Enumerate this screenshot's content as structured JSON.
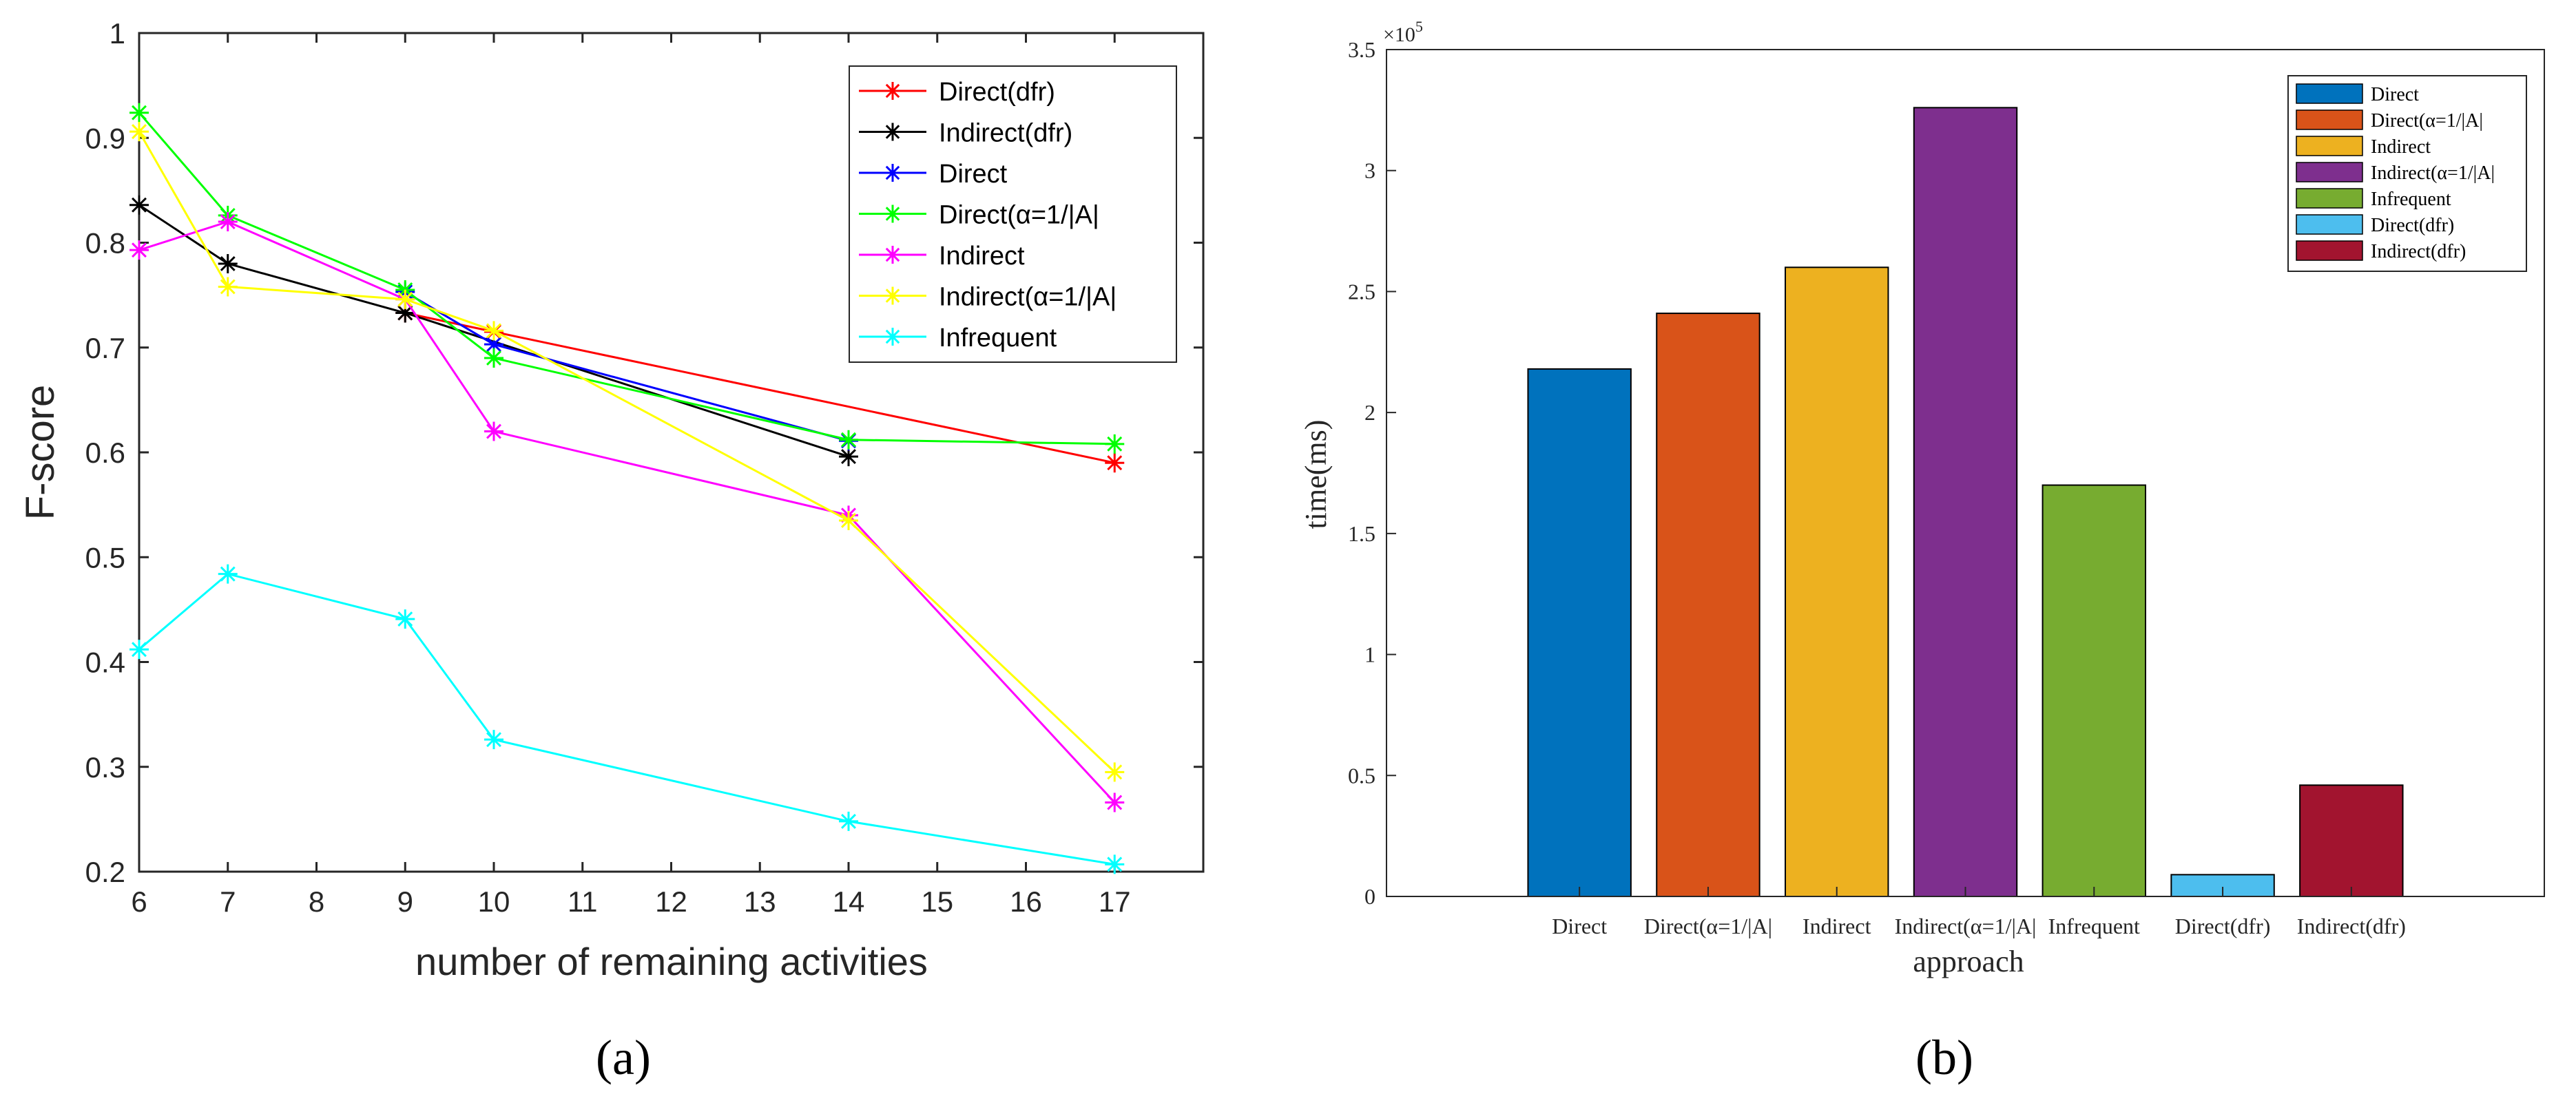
{
  "chart_data": [
    {
      "type": "line",
      "panel_label": "(a)",
      "xlabel": "number of remaining activities",
      "ylabel": "F-score",
      "xlim": [
        6,
        18
      ],
      "ylim": [
        0.2,
        1
      ],
      "xticks": [
        6,
        7,
        8,
        9,
        10,
        11,
        12,
        13,
        14,
        15,
        16,
        17
      ],
      "yticks": [
        0.2,
        0.3,
        0.4,
        0.5,
        0.6,
        0.7,
        0.8,
        0.9,
        1
      ],
      "ytick_labels": [
        "0.2",
        "0.3",
        "0.4",
        "0.5",
        "0.6",
        "0.7",
        "0.8",
        "0.9",
        "1"
      ],
      "legend_position": "top-right",
      "marker": "*",
      "series": [
        {
          "name": "Direct(dfr)",
          "color": "#ff0000",
          "x": [
            9,
            10,
            17
          ],
          "y": [
            0.733,
            0.715,
            0.59
          ]
        },
        {
          "name": "Indirect(dfr)",
          "color": "#000000",
          "x": [
            6,
            7,
            9,
            14
          ],
          "y": [
            0.836,
            0.78,
            0.733,
            0.596
          ]
        },
        {
          "name": "Direct",
          "color": "#0000ff",
          "x": [
            9,
            10,
            14
          ],
          "y": [
            0.753,
            0.703,
            0.611
          ]
        },
        {
          "name": "Direct(α=1/|A|",
          "color": "#00ff00",
          "x": [
            6,
            7,
            9,
            10,
            14,
            17
          ],
          "y": [
            0.924,
            0.826,
            0.755,
            0.69,
            0.612,
            0.608
          ]
        },
        {
          "name": "Indirect",
          "color": "#ff00ff",
          "x": [
            6,
            7,
            9,
            10,
            14,
            17
          ],
          "y": [
            0.793,
            0.82,
            0.746,
            0.62,
            0.54,
            0.266
          ]
        },
        {
          "name": "Indirect(α=1/|A|",
          "color": "#ffff00",
          "x": [
            6,
            7,
            9,
            10,
            14,
            17
          ],
          "y": [
            0.906,
            0.758,
            0.746,
            0.716,
            0.535,
            0.295
          ]
        },
        {
          "name": "Infrequent",
          "color": "#00ffff",
          "x": [
            6,
            7,
            9,
            10,
            14,
            17
          ],
          "y": [
            0.412,
            0.484,
            0.441,
            0.326,
            0.248,
            0.207
          ]
        }
      ]
    },
    {
      "type": "bar",
      "panel_label": "(b)",
      "xlabel": "approach",
      "ylabel": "time(ms)",
      "ylim": [
        0,
        350000
      ],
      "y_exponent": "×10",
      "y_exponent_power": "5",
      "yticks": [
        0,
        50000,
        100000,
        150000,
        200000,
        250000,
        300000,
        350000
      ],
      "ytick_labels": [
        "0",
        "0.5",
        "1",
        "1.5",
        "2",
        "2.5",
        "3",
        "3.5"
      ],
      "legend_position": "top-right",
      "categories": [
        "Direct",
        "Direct(α=1/|A|",
        "Indirect",
        "Indirect(α=1/|A|",
        "Infrequent",
        "Direct(dfr)",
        "Indirect(dfr)"
      ],
      "values": [
        218000,
        241000,
        260000,
        326000,
        170000,
        9000,
        46000
      ],
      "colors": [
        "#0072bd",
        "#d95319",
        "#edb120",
        "#7e2f8e",
        "#77ac30",
        "#4dbeee",
        "#a2142f"
      ]
    }
  ]
}
